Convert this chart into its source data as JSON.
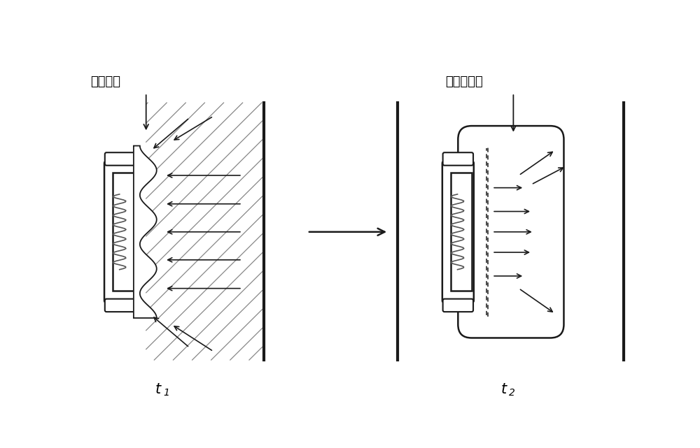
{
  "bg_color": "#ffffff",
  "label_left": "试剂垫片",
  "label_right": "膏胀和平衡",
  "t1_label": "t",
  "t1_sub": "1",
  "t2_label": "t",
  "t2_sub": "2",
  "line_color": "#1a1a1a",
  "hatch_color": "#555555"
}
